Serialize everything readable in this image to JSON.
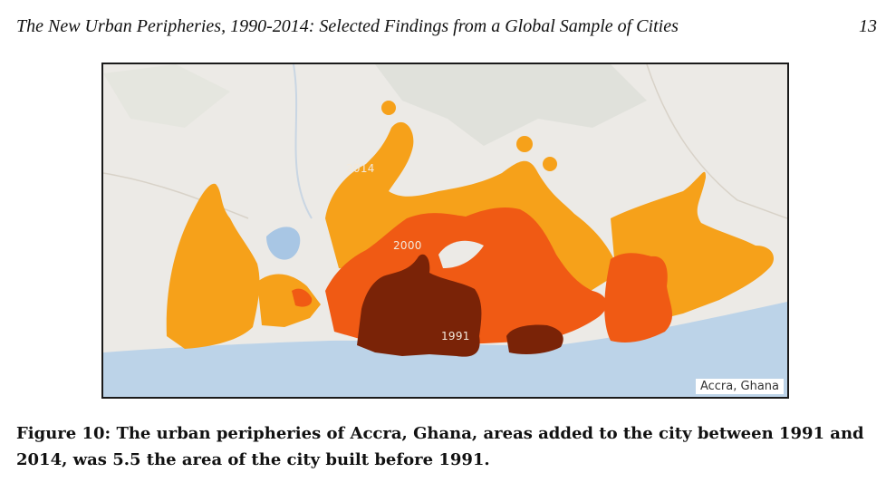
{
  "header": {
    "title": "The New Urban Peripheries, 1990-2014: Selected Findings from a Global Sample of Cities",
    "page_number": "13"
  },
  "map": {
    "period_labels": {
      "p2014": "2014",
      "p2000": "2000",
      "p1991": "1991"
    },
    "location_label": "Accra, Ghana",
    "colors": {
      "land": "#eceae6",
      "sea": "#bcd3e8",
      "area_2014": "#f6a11a",
      "area_2000": "#f05a14",
      "area_1991": "#7a2307"
    }
  },
  "caption": {
    "text": "Figure 10: The urban peripheries of Accra, Ghana, areas added to the city between 1991 and 2014, was 5.5 the area of the city built before 1991."
  }
}
